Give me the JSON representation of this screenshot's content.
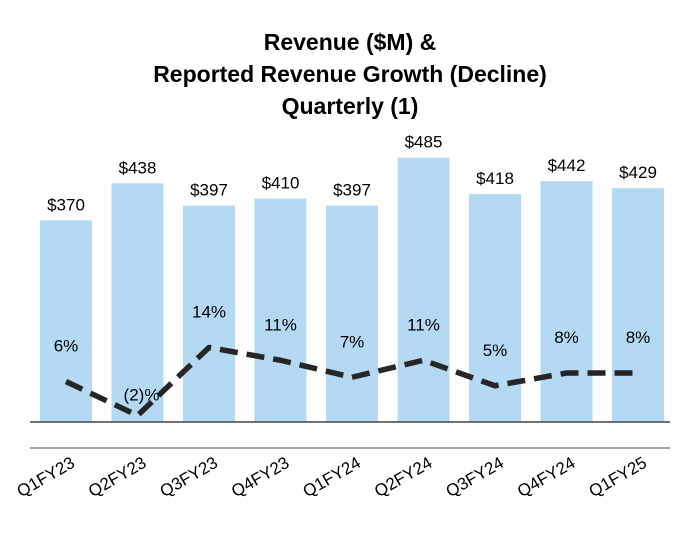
{
  "title_lines": [
    "Revenue ($M) &",
    "Reported Revenue Growth (Decline)",
    "Quarterly (1)"
  ],
  "colors": {
    "bar": "#b3d9f3",
    "growth_line": "#262626",
    "baseline": "#444444",
    "axis": "#a6a6a6"
  },
  "chart_data": {
    "type": "bar",
    "title": "Revenue ($M) & Reported Revenue Growth (Decline) Quarterly (1)",
    "categories": [
      "Q1FY23",
      "Q2FY23",
      "Q3FY23",
      "Q4FY23",
      "Q1FY24",
      "Q2FY24",
      "Q3FY24",
      "Q4FY24",
      "Q1FY25"
    ],
    "series": [
      {
        "name": "Revenue",
        "type": "bar",
        "values": [
          370,
          438,
          397,
          410,
          397,
          485,
          418,
          442,
          429
        ],
        "labels": [
          "$370",
          "$438",
          "$397",
          "$410",
          "$397",
          "$485",
          "$418",
          "$442",
          "$429"
        ]
      },
      {
        "name": "Reported Revenue Growth (Decline)",
        "type": "line",
        "style": "dashed",
        "values": [
          6,
          -2,
          14,
          11,
          7,
          11,
          5,
          8,
          8
        ],
        "labels": [
          "6%",
          "(2)%",
          "14%",
          "11%",
          "7%",
          "11%",
          "5%",
          "8%",
          "8%"
        ]
      }
    ],
    "xlabel": "",
    "ylabel": "",
    "grid": false,
    "legend": "none"
  }
}
